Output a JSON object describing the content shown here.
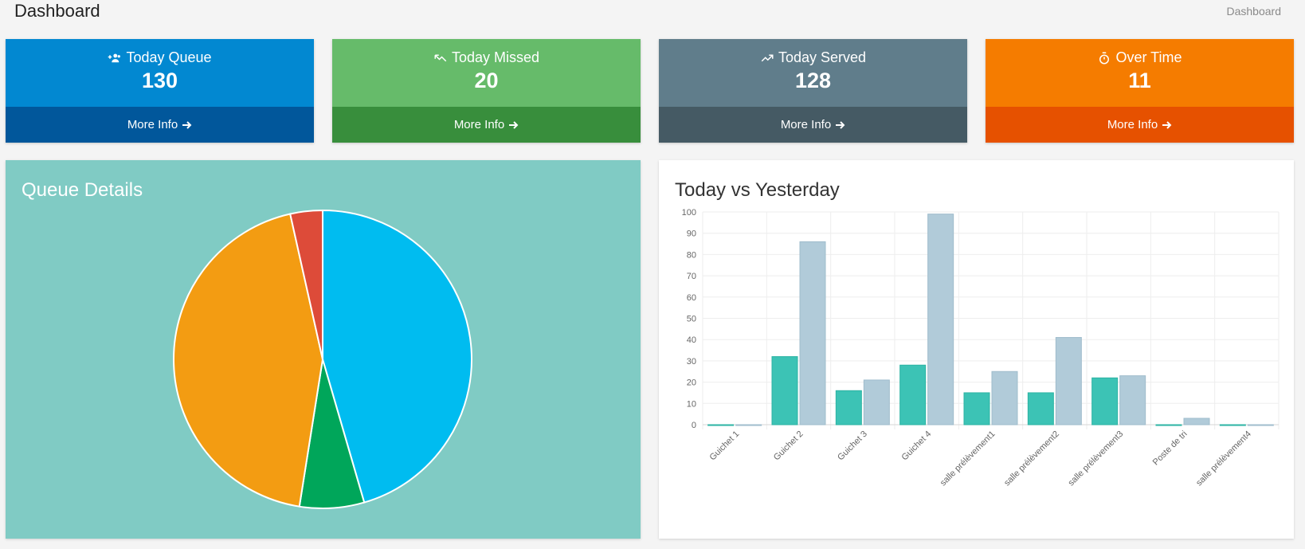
{
  "header": {
    "title": "Dashboard",
    "breadcrumb": "Dashboard"
  },
  "cards": [
    {
      "label": "Today Queue",
      "value": "130",
      "footer": "More Info",
      "icon": "users-icon",
      "color": "#0288d1"
    },
    {
      "label": "Today Missed",
      "value": "20",
      "footer": "More Info",
      "icon": "trend-down-icon",
      "color": "#66bb6a"
    },
    {
      "label": "Today Served",
      "value": "128",
      "footer": "More Info",
      "icon": "trend-up-icon",
      "color": "#607d8b"
    },
    {
      "label": "Over Time",
      "value": "11",
      "footer": "More Info",
      "icon": "timer-icon",
      "color": "#f57c00"
    }
  ],
  "queue_panel": {
    "title": "Queue Details"
  },
  "bar_panel": {
    "title": "Today vs Yesterday"
  },
  "chart_data": [
    {
      "type": "pie",
      "title": "Queue Details",
      "slices": [
        {
          "value": 45.5,
          "color": "#00bcf0"
        },
        {
          "value": 7,
          "color": "#00a65a"
        },
        {
          "value": 44,
          "color": "#f39c12"
        },
        {
          "value": 3.5,
          "color": "#dd4b39"
        }
      ]
    },
    {
      "type": "bar",
      "title": "Today vs Yesterday",
      "categories": [
        "Guichet 1",
        "Guichet 2",
        "Guichet 3",
        "Guichet 4",
        "salle prélèvement1",
        "salle prélèvement2",
        "salle prélèvement3",
        "Poste de tri",
        "salle prélèvement4"
      ],
      "series": [
        {
          "values": [
            0,
            32,
            16,
            28,
            15,
            15,
            22,
            0,
            0
          ],
          "color": "#3cc3b5"
        },
        {
          "values": [
            0,
            86,
            21,
            99,
            25,
            41,
            23,
            3,
            0
          ],
          "color": "#b1cbd9"
        }
      ],
      "ylim": [
        0,
        100
      ],
      "yticks": [
        0,
        10,
        20,
        30,
        40,
        50,
        60,
        70,
        80,
        90,
        100
      ],
      "grid": true
    }
  ]
}
